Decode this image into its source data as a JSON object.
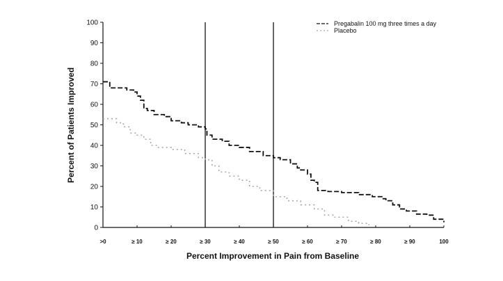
{
  "chart_data": {
    "type": "line",
    "title": "",
    "xlabel": "Percent Improvement in Pain from Baseline",
    "ylabel": "Percent of Patients Improved",
    "xlim": [
      0,
      100
    ],
    "ylim": [
      0,
      100
    ],
    "x_tick_labels": [
      ">0",
      "≥ 10",
      "≥ 20",
      "≥ 30",
      "≥ 40",
      "≥ 50",
      "≥ 60",
      "≥ 70",
      "≥ 80",
      "≥ 90",
      "100"
    ],
    "x_ticks": [
      0,
      10,
      20,
      30,
      40,
      50,
      60,
      70,
      80,
      90,
      100
    ],
    "y_ticks": [
      0,
      10,
      20,
      30,
      40,
      50,
      60,
      70,
      80,
      90,
      100
    ],
    "reference_lines_x": [
      30,
      50
    ],
    "grid": false,
    "legend_position": "top-right",
    "series": [
      {
        "name": "Pregabalin 100 mg three times a day",
        "style": "dashed",
        "color": "#111111",
        "x": [
          0,
          1,
          2,
          4,
          7,
          9,
          10,
          11,
          12,
          13,
          15,
          18,
          20,
          23,
          25,
          28,
          30,
          30.5,
          32,
          35,
          37,
          40,
          43,
          47,
          50,
          52,
          55,
          57,
          58,
          60,
          61,
          62,
          63,
          66,
          70,
          75,
          79,
          82,
          83,
          85,
          87,
          89,
          92,
          95,
          97,
          100
        ],
        "y": [
          71,
          71,
          68,
          68,
          67,
          66,
          64,
          62,
          58,
          57,
          55,
          54,
          52,
          51,
          50,
          49,
          48,
          45,
          43,
          42,
          40,
          39,
          37,
          35,
          34,
          33,
          31,
          29,
          28,
          26,
          23,
          22,
          18,
          17.5,
          17,
          16,
          15,
          14,
          13,
          11,
          9,
          8,
          6.5,
          6,
          4,
          2.5
        ]
      },
      {
        "name": "Placebo",
        "style": "dotted",
        "color": "#aaaaaa",
        "x": [
          0,
          2,
          4,
          6,
          8,
          10,
          12,
          14,
          16,
          20,
          24,
          28,
          30,
          32,
          34,
          37,
          40,
          43,
          46,
          50,
          54,
          58,
          62,
          65,
          68,
          72,
          75,
          78
        ],
        "y": [
          53,
          53,
          51,
          49,
          46,
          45,
          43,
          40,
          39,
          38,
          36,
          34,
          33,
          30,
          27,
          25,
          23,
          20,
          18,
          15,
          13,
          11,
          9,
          6,
          5,
          3,
          2,
          1
        ]
      }
    ]
  }
}
